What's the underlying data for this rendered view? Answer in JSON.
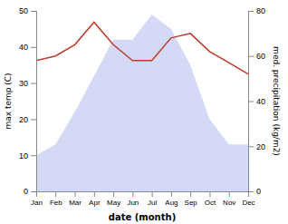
{
  "chart_data": {
    "type": "area",
    "xlabel": "date (month)",
    "ylabel": "max temp (C)",
    "y2label": "med. precipitation (kg/m2)",
    "categories": [
      "Jan",
      "Feb",
      "Mar",
      "Apr",
      "May",
      "Jun",
      "Jul",
      "Aug",
      "Sep",
      "Oct",
      "Nov",
      "Dec"
    ],
    "series": [
      {
        "type": "area",
        "color": "#b0bcee",
        "values": [
          10,
          13,
          22,
          32,
          42,
          42,
          49,
          45,
          35,
          20,
          13,
          13
        ]
      },
      {
        "type": "line",
        "color": "#c0392b",
        "axis": "y2",
        "values": [
          58,
          60,
          65,
          75,
          65,
          58,
          58,
          68,
          70,
          62,
          57,
          52
        ]
      }
    ],
    "ylim": [
      0,
      50
    ],
    "yticks": [
      0,
      10,
      20,
      30,
      40,
      50
    ],
    "y2lim": [
      0,
      80
    ],
    "y2ticks": [
      0,
      20,
      40,
      60,
      80
    ],
    "grid": false
  }
}
